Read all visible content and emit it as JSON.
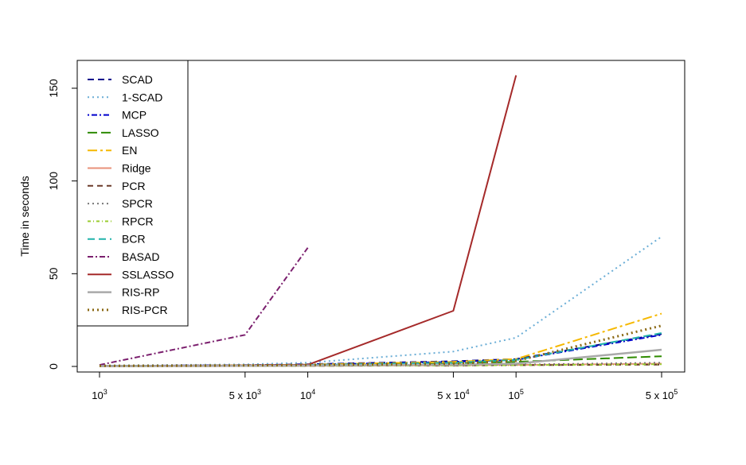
{
  "chart_data": {
    "type": "line",
    "title": "",
    "xlabel": "",
    "ylabel": "Time in seconds",
    "x_scale": "log",
    "x": [
      1000,
      5000,
      10000,
      50000,
      100000,
      500000
    ],
    "x_tick_labels": [
      {
        "base": "10",
        "sup": "3"
      },
      {
        "base": "5 x 10",
        "sup": "3"
      },
      {
        "base": "10",
        "sup": "4"
      },
      {
        "base": "5 x 10",
        "sup": "4"
      },
      {
        "base": "10",
        "sup": "5"
      },
      {
        "base": "5 x 10",
        "sup": "5"
      }
    ],
    "ylim": [
      -3,
      165
    ],
    "y_ticks": [
      0,
      50,
      100,
      150
    ],
    "y_tick_labels": [
      "0",
      "50",
      "100",
      "150"
    ],
    "grid": false,
    "legend_position": "top-left",
    "series": [
      {
        "name": "SCAD",
        "color": "#00008B",
        "dash": "8,5",
        "width": 2,
        "values": [
          0.3,
          0.7,
          1.2,
          2.8,
          4.0,
          17.5
        ]
      },
      {
        "name": "1-SCAD",
        "color": "#6BAED6",
        "dash": "2,4",
        "width": 2,
        "values": [
          0.5,
          1.1,
          2.0,
          8.0,
          15.5,
          70.0
        ]
      },
      {
        "name": "MCP",
        "color": "#0000CD",
        "dash": "2,3,7,3",
        "width": 2,
        "values": [
          0.3,
          0.6,
          1.0,
          2.5,
          3.5,
          17.0
        ]
      },
      {
        "name": "LASSO",
        "color": "#2E8B00",
        "dash": "12,5",
        "width": 2,
        "values": [
          0.2,
          0.4,
          0.7,
          1.5,
          2.5,
          5.5
        ]
      },
      {
        "name": "EN",
        "color": "#F5B800",
        "dash": "12,4,3,4",
        "width": 2,
        "values": [
          0.3,
          0.6,
          1.0,
          2.5,
          4.0,
          28.5
        ]
      },
      {
        "name": "Ridge",
        "color": "#E8907A",
        "dash": "",
        "width": 2,
        "values": [
          0.1,
          0.2,
          0.3,
          0.6,
          0.8,
          1.5
        ]
      },
      {
        "name": "PCR",
        "color": "#6B3A2A",
        "dash": "7,5",
        "width": 2,
        "values": [
          0.1,
          0.2,
          0.3,
          0.5,
          0.7,
          1.0
        ]
      },
      {
        "name": "SPCR",
        "color": "#777777",
        "dash": "2,4",
        "width": 2,
        "values": [
          0.2,
          0.3,
          0.4,
          0.8,
          1.0,
          2.0
        ]
      },
      {
        "name": "RPCR",
        "color": "#9ACD32",
        "dash": "4,3,1,3",
        "width": 2,
        "values": [
          0.1,
          0.2,
          0.3,
          0.5,
          0.7,
          1.2
        ]
      },
      {
        "name": "BCR",
        "color": "#20B2AA",
        "dash": "9,5",
        "width": 2,
        "values": [
          0.3,
          0.5,
          0.8,
          2.0,
          3.5,
          18.0
        ]
      },
      {
        "name": "BASAD",
        "color": "#7B1F6E",
        "dash": "7,3,2,3",
        "width": 2,
        "values": [
          0.8,
          17.0,
          64.0,
          null,
          null,
          null
        ]
      },
      {
        "name": "SSLASSO",
        "color": "#A52A2A",
        "dash": "",
        "width": 2,
        "values": [
          0.2,
          0.5,
          0.9,
          30.0,
          157.0,
          null
        ]
      },
      {
        "name": "RIS-RP",
        "color": "#A9A9A9",
        "dash": "",
        "width": 2.5,
        "values": [
          0.2,
          0.3,
          0.5,
          1.0,
          1.5,
          9.0
        ]
      },
      {
        "name": "RIS-PCR",
        "color": "#8B6914",
        "dash": "2,4",
        "width": 3,
        "values": [
          0.3,
          0.5,
          0.8,
          1.5,
          3.0,
          22.0
        ]
      }
    ]
  }
}
